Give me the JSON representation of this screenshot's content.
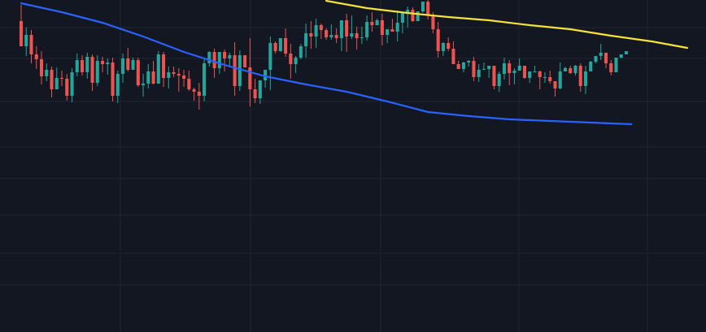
{
  "chart_data": {
    "type": "candlestick",
    "title": "",
    "xlabel": "",
    "ylabel": "",
    "grid": true,
    "ylim": [
      0,
      409
    ],
    "colors": {
      "background": "#131722",
      "grid": "#1f2433",
      "up": "#26a69a",
      "down": "#ef5350",
      "ma_fast": "#2962ff",
      "ma_slow": "#f5e23a"
    },
    "candles": [
      [
        383,
        352,
        403,
        352
      ],
      [
        352,
        366,
        375,
        340
      ],
      [
        366,
        342,
        372,
        331
      ],
      [
        342,
        336,
        352,
        324
      ],
      [
        336,
        315,
        346,
        305
      ],
      [
        315,
        323,
        331,
        309
      ],
      [
        323,
        299,
        327,
        289
      ],
      [
        299,
        313,
        326,
        300
      ],
      [
        313,
        312,
        322,
        303
      ],
      [
        312,
        291,
        318,
        285
      ],
      [
        291,
        320,
        325,
        283
      ],
      [
        320,
        335,
        343,
        315
      ],
      [
        335,
        320,
        341,
        316
      ],
      [
        320,
        339,
        344,
        312
      ],
      [
        339,
        307,
        342,
        297
      ],
      [
        307,
        334,
        341,
        303
      ],
      [
        334,
        330,
        339,
        320
      ],
      [
        330,
        332,
        337,
        317
      ],
      [
        332,
        291,
        338,
        284
      ],
      [
        291,
        318,
        322,
        282
      ],
      [
        318,
        337,
        343,
        307
      ],
      [
        337,
        323,
        350,
        321
      ],
      [
        323,
        335,
        338,
        326
      ],
      [
        335,
        304,
        338,
        302
      ],
      [
        304,
        306,
        318,
        290
      ],
      [
        306,
        321,
        330,
        300
      ],
      [
        321,
        306,
        334,
        305
      ],
      [
        306,
        342,
        346,
        306
      ],
      [
        342,
        313,
        345,
        302
      ],
      [
        313,
        320,
        327,
        300
      ],
      [
        320,
        318,
        327,
        314
      ],
      [
        318,
        316,
        325,
        296
      ],
      [
        316,
        312,
        323,
        302
      ],
      [
        312,
        299,
        322,
        297
      ],
      [
        299,
        296,
        301,
        285
      ],
      [
        296,
        291,
        307,
        274
      ],
      [
        291,
        331,
        338,
        284
      ],
      [
        331,
        345,
        346,
        327
      ],
      [
        345,
        325,
        349,
        313
      ],
      [
        325,
        345,
        345,
        318
      ],
      [
        345,
        337,
        348,
        321
      ],
      [
        337,
        341,
        344,
        326
      ],
      [
        341,
        303,
        357,
        291
      ],
      [
        303,
        341,
        347,
        297
      ],
      [
        341,
        326,
        339,
        327
      ],
      [
        326,
        299,
        362,
        278
      ],
      [
        299,
        288,
        312,
        282
      ],
      [
        288,
        310,
        310,
        281
      ],
      [
        310,
        323,
        320,
        301
      ],
      [
        323,
        356,
        364,
        298
      ],
      [
        356,
        346,
        358,
        343
      ],
      [
        346,
        362,
        356,
        345
      ],
      [
        362,
        343,
        374,
        339
      ],
      [
        343,
        330,
        355,
        312
      ],
      [
        330,
        338,
        340,
        319
      ],
      [
        338,
        352,
        355,
        336
      ],
      [
        352,
        368,
        380,
        338
      ],
      [
        368,
        364,
        383,
        349
      ],
      [
        364,
        378,
        386,
        350
      ],
      [
        378,
        372,
        380,
        361
      ],
      [
        372,
        363,
        374,
        360
      ],
      [
        363,
        366,
        379,
        360
      ],
      [
        366,
        362,
        374,
        356
      ],
      [
        362,
        384,
        381,
        346
      ],
      [
        384,
        364,
        392,
        345
      ],
      [
        364,
        368,
        390,
        361
      ],
      [
        368,
        362,
        376,
        348
      ],
      [
        362,
        363,
        376,
        355
      ],
      [
        363,
        382,
        390,
        359
      ],
      [
        382,
        378,
        394,
        370
      ],
      [
        378,
        384,
        386,
        378
      ],
      [
        384,
        366,
        392,
        353
      ],
      [
        366,
        373,
        373,
        356
      ],
      [
        373,
        370,
        386,
        370
      ],
      [
        370,
        381,
        396,
        358
      ],
      [
        381,
        393,
        384,
        368
      ],
      [
        393,
        397,
        401,
        375
      ],
      [
        397,
        383,
        400,
        382
      ],
      [
        383,
        395,
        392,
        384
      ],
      [
        395,
        407,
        402,
        393
      ],
      [
        407,
        391,
        414,
        385
      ],
      [
        391,
        373,
        394,
        368
      ],
      [
        373,
        346,
        382,
        338
      ],
      [
        346,
        356,
        357,
        340
      ],
      [
        356,
        349,
        363,
        346
      ],
      [
        349,
        330,
        358,
        335
      ],
      [
        330,
        324,
        334,
        326
      ],
      [
        324,
        332,
        333,
        320
      ],
      [
        332,
        334,
        335,
        327
      ],
      [
        334,
        314,
        339,
        309
      ],
      [
        314,
        323,
        330,
        308
      ],
      [
        323,
        324,
        332,
        323
      ],
      [
        324,
        328,
        327,
        313
      ],
      [
        328,
        303,
        327,
        299
      ],
      [
        303,
        318,
        321,
        296
      ],
      [
        318,
        331,
        338,
        311
      ],
      [
        331,
        319,
        335,
        304
      ],
      [
        319,
        322,
        325,
        305
      ],
      [
        322,
        328,
        337,
        323
      ],
      [
        328,
        313,
        327,
        312
      ],
      [
        313,
        321,
        321,
        307
      ],
      [
        321,
        321,
        328,
        322
      ],
      [
        321,
        314,
        322,
        299
      ],
      [
        314,
        314,
        320,
        307
      ],
      [
        314,
        309,
        322,
        306
      ],
      [
        309,
        300,
        307,
        290
      ],
      [
        300,
        321,
        332,
        299
      ],
      [
        321,
        325,
        327,
        324
      ],
      [
        325,
        319,
        328,
        318
      ],
      [
        319,
        328,
        329,
        316
      ],
      [
        328,
        303,
        331,
        296
      ],
      [
        303,
        321,
        328,
        293
      ],
      [
        321,
        333,
        334,
        325
      ],
      [
        333,
        340,
        336,
        331
      ],
      [
        340,
        344,
        355,
        335
      ],
      [
        344,
        331,
        343,
        325
      ],
      [
        331,
        320,
        335,
        316
      ],
      [
        320,
        338,
        332,
        322
      ],
      [
        338,
        342,
        341,
        337
      ],
      [
        342,
        346,
        345,
        344
      ]
    ],
    "series": [
      {
        "key": "ma_fast",
        "x": [
          0,
          8,
          16,
          24,
          32,
          40,
          48,
          56,
          64,
          72,
          80,
          88,
          96,
          104,
          112,
          120
        ],
        "values": [
          405,
          394,
          381,
          364,
          345,
          329,
          315,
          305,
          296,
          284,
          271,
          266,
          262,
          260,
          258,
          256
        ]
      },
      {
        "key": "ma_slow",
        "x": [
          60,
          68,
          76,
          84,
          92,
          100,
          108,
          116,
          124,
          131
        ],
        "values": [
          408,
          399,
          393,
          388,
          384,
          378,
          373,
          365,
          358,
          350
        ]
      }
    ]
  }
}
